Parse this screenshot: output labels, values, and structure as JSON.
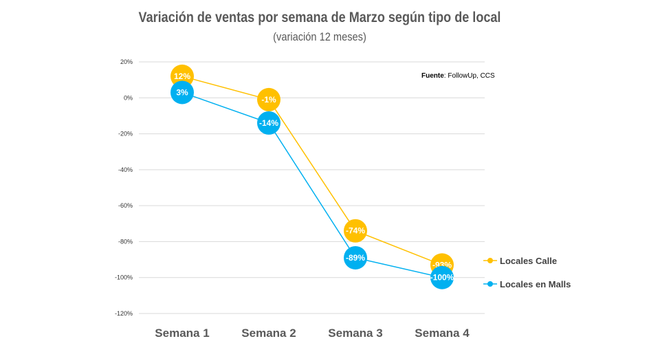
{
  "chart_data": {
    "type": "line",
    "title": "Variación de ventas por semana de Marzo según tipo de local",
    "subtitle": "(variación 12 meses)",
    "categories": [
      "Semana 1",
      "Semana 2",
      "Semana 3",
      "Semana 4"
    ],
    "ylim": [
      -120,
      20
    ],
    "yticks": [
      20,
      0,
      -20,
      -40,
      -60,
      -80,
      -100,
      -120
    ],
    "ytick_labels": [
      "20%",
      "0%",
      "-20%",
      "-40%",
      "-60%",
      "-80%",
      "-100%",
      "-120%"
    ],
    "grid": true,
    "legend_position": "right",
    "series": [
      {
        "name": "Locales Calle",
        "color": "#FFC000",
        "values": [
          12,
          -1,
          -74,
          -93
        ],
        "labels": [
          "12%",
          "-1%",
          "-74%",
          "-93%"
        ]
      },
      {
        "name": "Locales en Malls",
        "color": "#00B0F0",
        "values": [
          3,
          -14,
          -89,
          -100
        ],
        "labels": [
          "3%",
          "-14%",
          "-89%",
          "-100%"
        ]
      }
    ],
    "source": {
      "label": "Fuente",
      "text": ": FollowUp, CCS"
    }
  }
}
